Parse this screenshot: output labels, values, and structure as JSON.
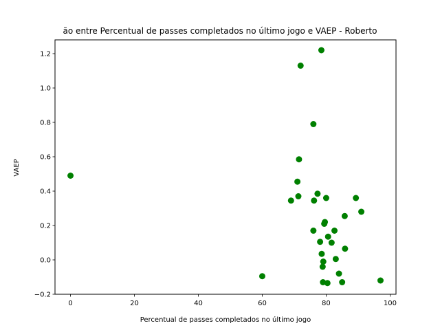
{
  "chart_data": {
    "type": "scatter",
    "title": "ão entre Percentual de passes completados no último jogo e VAEP - Roberto",
    "xlabel": "Percentual de passes completados no último jogo",
    "ylabel": "VAEP",
    "xlim": [
      -4.85,
      101.85
    ],
    "ylim": [
      -0.2,
      1.28
    ],
    "xticks": [
      0,
      20,
      40,
      60,
      80,
      100
    ],
    "yticks": [
      -0.2,
      0.0,
      0.2,
      0.4,
      0.6,
      0.8,
      1.0,
      1.2
    ],
    "grid": false,
    "marker_color": "#008000",
    "points": [
      {
        "x": 0,
        "y": 0.49
      },
      {
        "x": 60,
        "y": -0.095
      },
      {
        "x": 69,
        "y": 0.345
      },
      {
        "x": 71,
        "y": 0.455
      },
      {
        "x": 71.3,
        "y": 0.37
      },
      {
        "x": 71.5,
        "y": 0.585
      },
      {
        "x": 72,
        "y": 1.13
      },
      {
        "x": 76,
        "y": 0.79
      },
      {
        "x": 76,
        "y": 0.17
      },
      {
        "x": 76.2,
        "y": 0.345
      },
      {
        "x": 77.3,
        "y": 0.385
      },
      {
        "x": 78.1,
        "y": 0.105
      },
      {
        "x": 78.5,
        "y": 1.22
      },
      {
        "x": 78.6,
        "y": 0.035
      },
      {
        "x": 78.9,
        "y": -0.04
      },
      {
        "x": 79,
        "y": -0.13
      },
      {
        "x": 79.1,
        "y": -0.01
      },
      {
        "x": 79.4,
        "y": 0.21
      },
      {
        "x": 79.6,
        "y": 0.22
      },
      {
        "x": 80,
        "y": 0.36
      },
      {
        "x": 80.4,
        "y": -0.135
      },
      {
        "x": 80.6,
        "y": 0.135
      },
      {
        "x": 81.7,
        "y": 0.1
      },
      {
        "x": 82.6,
        "y": 0.17
      },
      {
        "x": 83,
        "y": 0.005
      },
      {
        "x": 84,
        "y": -0.08
      },
      {
        "x": 85,
        "y": -0.13
      },
      {
        "x": 85.8,
        "y": 0.255
      },
      {
        "x": 85.9,
        "y": 0.065
      },
      {
        "x": 89.3,
        "y": 0.36
      },
      {
        "x": 91,
        "y": 0.28
      },
      {
        "x": 97,
        "y": -0.12
      }
    ]
  }
}
